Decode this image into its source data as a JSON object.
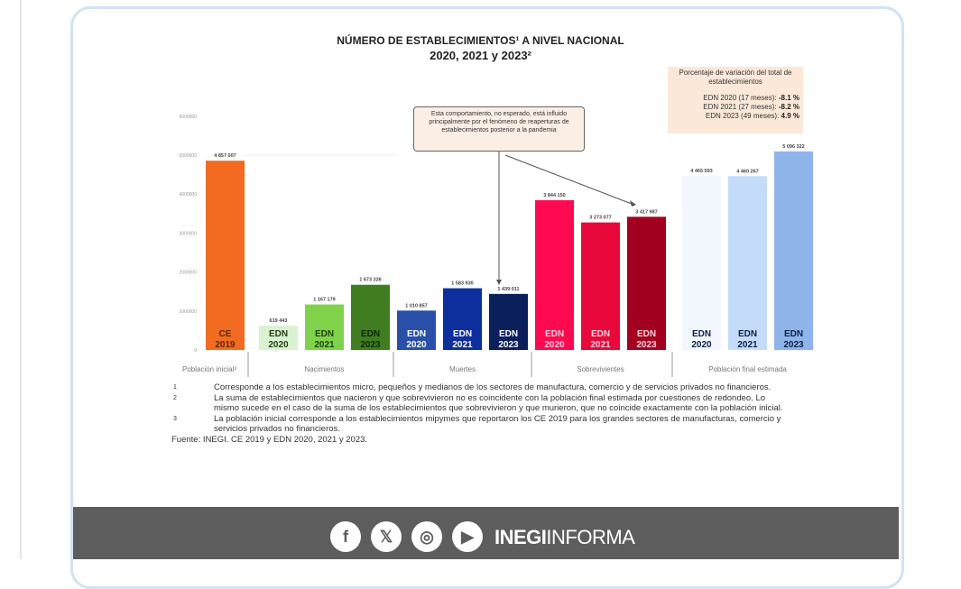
{
  "chart_data": {
    "type": "bar",
    "title": "NÚMERO DE ESTABLECIMIENTOS¹ A NIVEL NACIONAL",
    "subtitle": "2020, 2021 y 2023²",
    "ylim": [
      0,
      6000000
    ],
    "yticks": [
      "0",
      "1000000",
      "2000000",
      "3000000",
      "4000000",
      "5000000",
      "6000000"
    ],
    "grid": false,
    "groups": [
      {
        "label": "Población inicial³",
        "bars": [
          {
            "label": [
              "CE",
              "2019"
            ],
            "value": 4857007,
            "value_label": "4 857 007",
            "color": "#f26b21",
            "text_color": "#5a2a00"
          }
        ]
      },
      {
        "label": "Nacimientos",
        "bars": [
          {
            "label": [
              "EDN",
              "2020"
            ],
            "value": 619443,
            "value_label": "619 443",
            "color": "#d9f2d0",
            "text_color": "#1f3d10"
          },
          {
            "label": [
              "EDN",
              "2021"
            ],
            "value": 1167179,
            "value_label": "1 167 179",
            "color": "#7fd24a",
            "text_color": "#1f3d10"
          },
          {
            "label": [
              "EDN",
              "2023"
            ],
            "value": 1673326,
            "value_label": "1 673 326",
            "color": "#3f7d20",
            "text_color": "#0e2806"
          }
        ]
      },
      {
        "label": "Muertes",
        "bars": [
          {
            "label": [
              "EDN",
              "2020"
            ],
            "value": 1010857,
            "value_label": "1 010 857",
            "color": "#2a4fa8",
            "text_color": "#ffffff"
          },
          {
            "label": [
              "EDN",
              "2021"
            ],
            "value": 1583930,
            "value_label": "1 583 930",
            "color": "#0d2f9e",
            "text_color": "#ffffff"
          },
          {
            "label": [
              "EDN",
              "2023"
            ],
            "value": 1439011,
            "value_label": "1 439 011",
            "color": "#0b1f5c",
            "text_color": "#ffffff"
          }
        ]
      },
      {
        "label": "Sobrevivientes",
        "bars": [
          {
            "label": [
              "EDN",
              "2020"
            ],
            "value": 3844150,
            "value_label": "3 844 150",
            "color": "#ff0a50",
            "text_color": "#ffd0dc"
          },
          {
            "label": [
              "EDN",
              "2021"
            ],
            "value": 3273077,
            "value_label": "3 273 077",
            "color": "#e8093a",
            "text_color": "#ffd0dc"
          },
          {
            "label": [
              "EDN",
              "2023"
            ],
            "value": 3417987,
            "value_label": "3 417 987",
            "color": "#a3001f",
            "text_color": "#ffd0dc"
          }
        ]
      },
      {
        "label": "Población final estimada",
        "bars": [
          {
            "label": [
              "EDN",
              "2020"
            ],
            "value": 4465593,
            "value_label": "4 465 593",
            "color": "#f3f8ff",
            "text_color": "#0b1f4a"
          },
          {
            "label": [
              "EDN",
              "2021"
            ],
            "value": 4460267,
            "value_label": "4 460 267",
            "color": "#c4dcfa",
            "text_color": "#0b1f4a"
          },
          {
            "label": [
              "EDN",
              "2023"
            ],
            "value": 5096322,
            "value_label": "5 096 322",
            "color": "#8fb4ea",
            "text_color": "#0b1f4a"
          }
        ]
      }
    ],
    "annotation": "Esta comportamiento, no esperado, está influido principalmente por el fenómeno de reaperturas de establecimientos posterior a la pandemia"
  },
  "variation": {
    "title": "Porcentaje de variación del total de establecimientos",
    "rows": [
      {
        "label": "EDN 2020 (17 meses):",
        "value": "-8.1 %"
      },
      {
        "label": "EDN 2021 (27 meses):",
        "value": "-8.2 %"
      },
      {
        "label": "EDN 2023 (49 meses):",
        "value": "4.9 %"
      }
    ]
  },
  "notes": [
    {
      "n": "1",
      "text": "Corresponde a los establecimientos micro, pequeños y medianos de los sectores de manufactura, comercio y de servicios privados no financieros."
    },
    {
      "n": "2",
      "text": "La suma de establecimientos que nacieron y que sobrevivieron no es coincidente con la población final estimada por cuestiones de redondeo. Lo mismo sucede en el caso de la suma de los establecimientos que sobrevivieron y que murieron, que no coincide exactamente con la población inicial."
    },
    {
      "n": "3",
      "text": "La población inicial corresponde a los establecimientos mipymes que reportaron los CE 2019 para los grandes sectores de manufacturas, comercio y servicios privados no financieros."
    }
  ],
  "source": "Fuente: INEGI. CE 2019 y EDN 2020, 2021 y 2023.",
  "footer": {
    "icons": [
      {
        "name": "facebook-icon",
        "glyph": "f"
      },
      {
        "name": "x-icon",
        "glyph": "𝕏"
      },
      {
        "name": "instagram-icon",
        "glyph": "◎"
      },
      {
        "name": "youtube-icon",
        "glyph": "▶"
      }
    ],
    "brand_bold": "INEGI",
    "brand_rest": "INFORMA"
  }
}
